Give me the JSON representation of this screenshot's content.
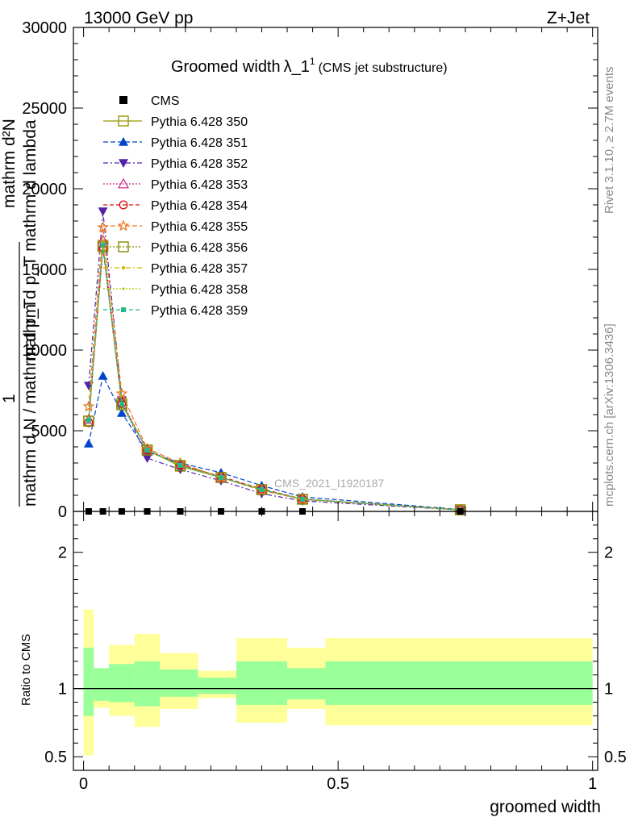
{
  "header": {
    "energy": "13000 GeV pp",
    "process": "Z+Jet"
  },
  "title": {
    "main": "Groomed width",
    "symbol": "λ_1",
    "sup": "1",
    "sub": "(CMS jet substructure)"
  },
  "side_labels": {
    "rivet": "Rivet 3.1.10, ≥ 2.7M events",
    "mcplots": "mcplots.cern.ch [arXiv:1306.3436]"
  },
  "watermark": "CMS_2021_I1920187",
  "ylabel_top": {
    "line1": "mathrm d²N",
    "line2": "mathrm d p_T mathrm d lambda",
    "line3": "1",
    "line4": "mathrm d N / mathrm d p_T"
  },
  "ylabel_ratio": "Ratio to CMS",
  "xlabel": "groomed width",
  "colors": {
    "green_band": "#99ff99",
    "yellow_band": "#ffff99",
    "cms": "#000000"
  },
  "chart_data": {
    "type": "line",
    "xlim": [
      -0.02,
      1.01
    ],
    "ylim": [
      0,
      30000
    ],
    "yticks": [
      0,
      5000,
      10000,
      15000,
      20000,
      25000,
      30000
    ],
    "ytick_labels": [
      "0",
      "5000",
      "10000",
      "15000",
      "20000",
      "25000",
      "30000"
    ],
    "xticks": [
      0,
      0.5,
      1
    ],
    "xtick_labels": [
      "0",
      "0.5",
      "1"
    ],
    "x": [
      0.01,
      0.038,
      0.075,
      0.125,
      0.19,
      0.27,
      0.35,
      0.43,
      0.74
    ],
    "bin_edges": [
      0,
      0.02,
      0.05,
      0.1,
      0.15,
      0.225,
      0.3,
      0.4,
      0.475,
      1.0
    ],
    "cms_values": [
      0,
      0,
      0,
      0,
      0,
      0,
      0,
      0,
      0
    ],
    "series": [
      {
        "name": "Pythia 6.428 350",
        "color": "#999900",
        "dash": "",
        "marker": "square-open",
        "values": [
          5600,
          16500,
          6700,
          3800,
          2800,
          2100,
          1350,
          750,
          100
        ]
      },
      {
        "name": "Pythia 6.428 351",
        "color": "#0044cc",
        "dash": "6,3",
        "marker": "triangle-up",
        "values": [
          4200,
          8400,
          6100,
          3700,
          3000,
          2400,
          1600,
          900,
          120
        ]
      },
      {
        "name": "Pythia 6.428 352",
        "color": "#5522aa",
        "dash": "6,3,2,3",
        "marker": "triangle-down",
        "values": [
          7800,
          18600,
          6900,
          3300,
          2600,
          1900,
          1100,
          650,
          90
        ]
      },
      {
        "name": "Pythia 6.428 353",
        "color": "#cc2288",
        "dash": "2,2",
        "marker": "triangle-open",
        "values": [
          5700,
          16800,
          6800,
          3800,
          2900,
          2100,
          1350,
          760,
          100
        ]
      },
      {
        "name": "Pythia 6.428 354",
        "color": "#dd1111",
        "dash": "5,3",
        "marker": "circle-open",
        "values": [
          5500,
          16300,
          6700,
          3800,
          2900,
          2150,
          1400,
          770,
          105
        ]
      },
      {
        "name": "Pythia 6.428 355",
        "color": "#ee7722",
        "dash": "6,3",
        "marker": "star-open",
        "values": [
          6500,
          17600,
          7300,
          3900,
          3000,
          2100,
          1300,
          740,
          100
        ]
      },
      {
        "name": "Pythia 6.428 356",
        "color": "#888800",
        "dash": "2,2",
        "marker": "square-open",
        "values": [
          5600,
          16400,
          6600,
          3800,
          2850,
          2100,
          1350,
          760,
          100
        ]
      },
      {
        "name": "Pythia 6.428 357",
        "color": "#ccbb00",
        "dash": "6,3,2,3",
        "marker": "dot",
        "values": [
          5650,
          16600,
          6650,
          3800,
          2850,
          2100,
          1350,
          760,
          100
        ]
      },
      {
        "name": "Pythia 6.428 358",
        "color": "#aacc00",
        "dash": "2,2",
        "marker": "dot-small",
        "values": [
          5600,
          16500,
          6700,
          3800,
          2850,
          2100,
          1350,
          760,
          100
        ]
      },
      {
        "name": "Pythia 6.428 359",
        "color": "#22bb88",
        "dash": "5,3",
        "marker": "square-filled",
        "values": [
          5650,
          16500,
          6650,
          3800,
          2850,
          2100,
          1350,
          760,
          100
        ]
      }
    ],
    "legend_data_label": "CMS",
    "ratio": {
      "ylim": [
        0.4,
        2.3
      ],
      "yticks": [
        0.5,
        1,
        2
      ],
      "ytick_labels": [
        "0.5",
        "1",
        "2"
      ],
      "green_lo": [
        0.8,
        0.91,
        0.9,
        0.87,
        0.94,
        0.96,
        0.88,
        0.92,
        0.88
      ],
      "green_hi": [
        1.3,
        1.15,
        1.18,
        1.2,
        1.14,
        1.08,
        1.2,
        1.15,
        1.2
      ],
      "yellow_lo": [
        0.51,
        0.86,
        0.8,
        0.72,
        0.85,
        0.93,
        0.75,
        0.85,
        0.73
      ],
      "yellow_hi": [
        1.58,
        1.1,
        1.32,
        1.4,
        1.26,
        1.13,
        1.37,
        1.3,
        1.37
      ]
    }
  }
}
